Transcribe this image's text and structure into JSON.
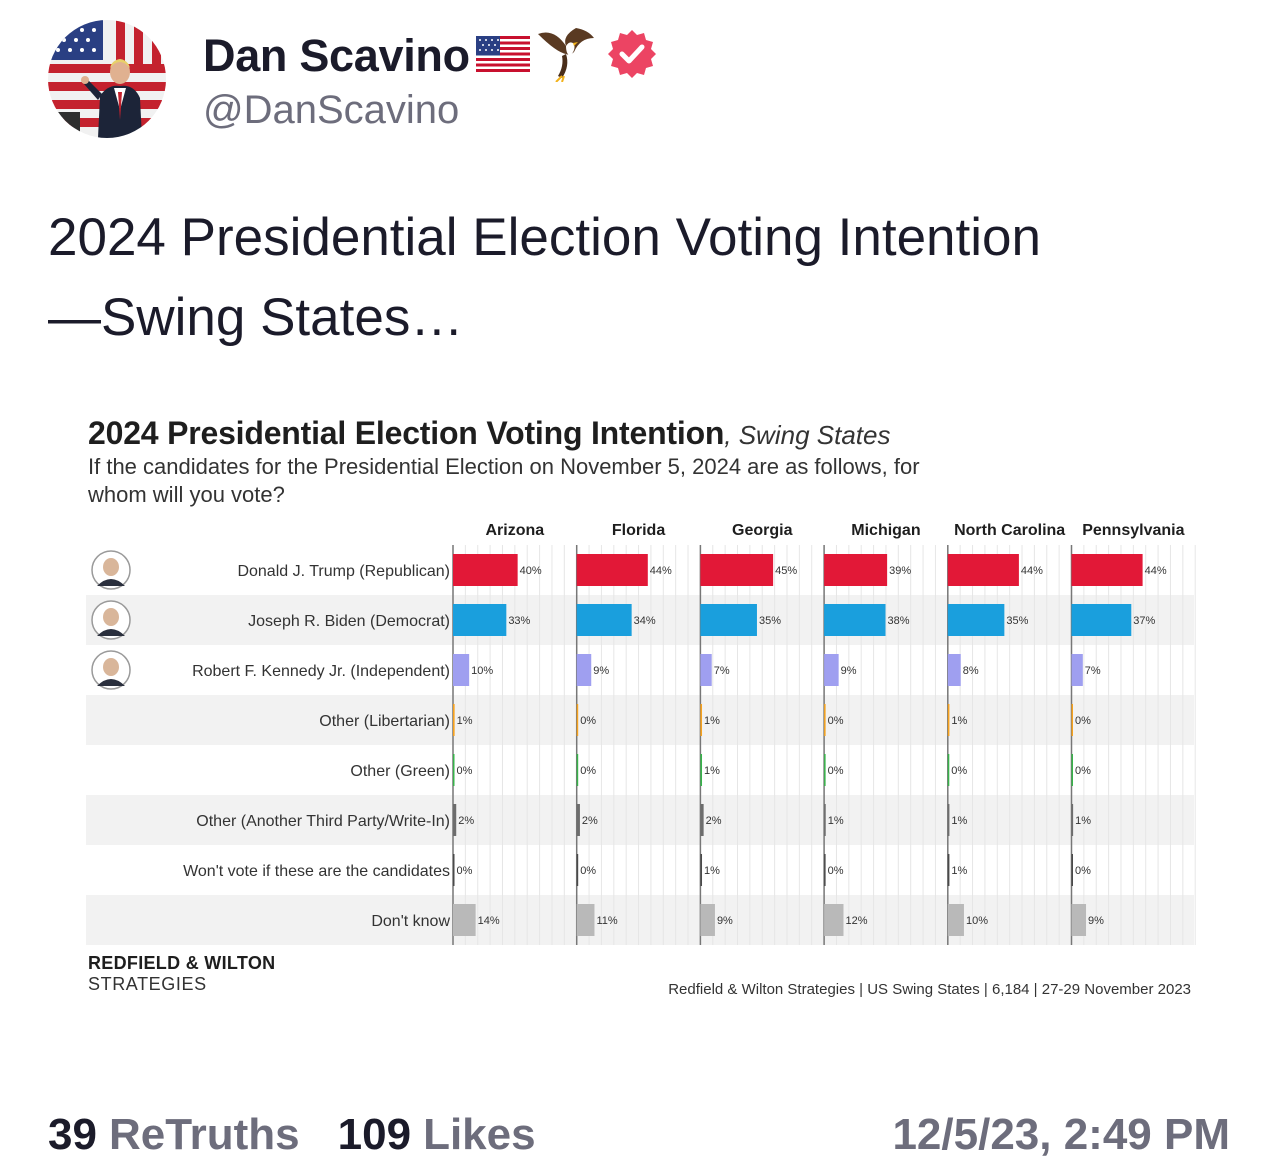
{
  "author": {
    "display_name": "Dan Scavino",
    "handle": "@DanScavino"
  },
  "post": {
    "text_line1": "2024 Presidential Election Voting Intention",
    "text_line2": "—Swing States…"
  },
  "image": {
    "title_main": "2024 Presidential Election Voting Intention",
    "title_sub": ", Swing States",
    "question": "If the candidates for the Presidential Election on November 5, 2024 are as follows, for whom will you vote?",
    "brand_line1": "REDFIELD & WILTON",
    "brand_line2": "STRATEGIES",
    "source": "Redfield & Wilton Strategies | US Swing States | 6,184 | 27-29 November 2023"
  },
  "chart_data": {
    "type": "bar",
    "orientation": "horizontal-small-multiples",
    "title": "2024 Presidential Election Voting Intention, Swing States",
    "subtitle": "If the candidates for the Presidential Election on November 5, 2024 are as follows, for whom will you vote?",
    "states": [
      "Arizona",
      "Florida",
      "Georgia",
      "Michigan",
      "North Carolina",
      "Pennsylvania"
    ],
    "categories": [
      "Donald J. Trump (Republican)",
      "Joseph R. Biden (Democrat)",
      "Robert F. Kennedy Jr. (Independent)",
      "Other (Libertarian)",
      "Other (Green)",
      "Other (Another Third Party/Write-In)",
      "Won't vote if these are the candidates",
      "Don't know"
    ],
    "colors": [
      "#e21837",
      "#1a9fdd",
      "#9f9ff0",
      "#f6a21e",
      "#37b34a",
      "#6d6d6d",
      "#4a4a4a",
      "#b9b9b9"
    ],
    "values": {
      "Arizona": [
        40,
        33,
        10,
        1,
        0,
        2,
        0,
        14
      ],
      "Florida": [
        44,
        34,
        9,
        0,
        0,
        2,
        0,
        11
      ],
      "Georgia": [
        45,
        35,
        7,
        1,
        1,
        2,
        1,
        9
      ],
      "Michigan": [
        39,
        38,
        9,
        0,
        0,
        1,
        0,
        12
      ],
      "North Carolina": [
        44,
        35,
        8,
        1,
        0,
        1,
        1,
        10
      ],
      "Pennsylvania": [
        44,
        37,
        7,
        0,
        0,
        1,
        0,
        9
      ]
    },
    "unit": "%",
    "xlim": [
      0,
      50
    ]
  },
  "engagement": {
    "retruths_count": "39",
    "retruths_label": "ReTruths",
    "likes_count": "109",
    "likes_label": "Likes",
    "timestamp": "12/5/23, 2:49 PM"
  }
}
